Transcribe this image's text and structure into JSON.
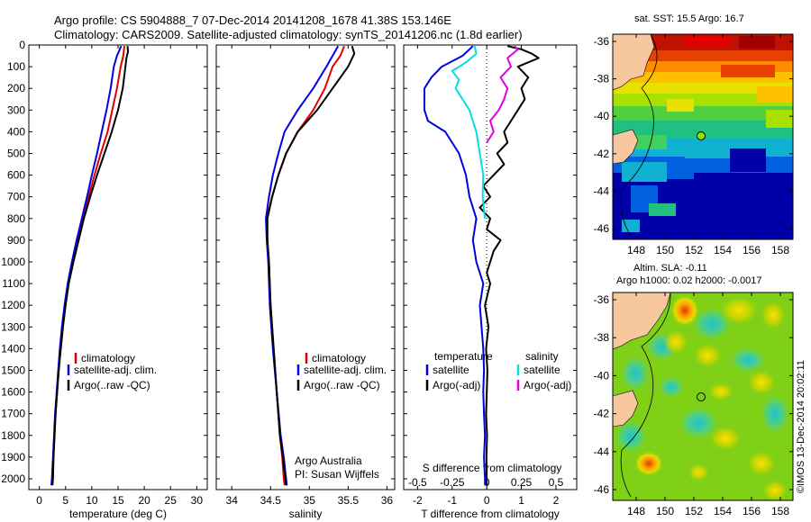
{
  "titles": {
    "line1": "Argo profile: CS 5904888_7 07-Dec-2014 20141208_1678 41.38S 153.146E",
    "line2": "Climatology: CARS2009. Satellite-adjusted climatology: synTS_20141206.nc (1.8d earlier)"
  },
  "colors": {
    "climatology": "#e00000",
    "satellite": "#0000e0",
    "argo": "#000000",
    "sal_satellite": "#00e0e0",
    "sal_argo": "#e000e0",
    "land": "#f7c8a0"
  },
  "legend_temp": {
    "climatology": "climatology",
    "satellite": "satellite-adj. clim.",
    "argo": "Argo(..raw -QC)"
  },
  "legend_sal": {
    "climatology": "climatology",
    "satellite": "satellite-adj. clim.",
    "argo": "Argo(..raw -QC)"
  },
  "legend_diff": {
    "temperature_head": "temperature",
    "salinity_head": "salinity",
    "satellite_t": "satellite",
    "argo_t": "Argo(-adj)",
    "satellite_s": "satellite",
    "argo_s": "Argo(-adj)"
  },
  "credit": {
    "line1": "Argo Australia",
    "line2": "PI: Susan Wijffels"
  },
  "map_sst": {
    "title": "sat. SST: 15.5 Argo: 16.7",
    "yticks": [
      "-36",
      "-38",
      "-40",
      "-42",
      "-44",
      "-46"
    ],
    "xticks": [
      "148",
      "150",
      "152",
      "154",
      "156",
      "158"
    ]
  },
  "map_sla": {
    "title1": "Altim. SLA: -0.11",
    "title2": "Argo h1000: 0.02 h2000: -0.0017",
    "yticks": [
      "-36",
      "-38",
      "-40",
      "-42",
      "-44",
      "-46"
    ],
    "xticks": [
      "148",
      "150",
      "152",
      "154",
      "156",
      "158"
    ]
  },
  "watermark": "©IMOS 13-Dec-2014 20:02:11",
  "chart_data": [
    {
      "type": "line",
      "name": "temperature-profile",
      "xlabel": "temperature (deg C)",
      "ylabel": "",
      "xlim": [
        -2,
        32
      ],
      "ylim": [
        2050,
        0
      ],
      "xticks": [
        0,
        5,
        10,
        15,
        20,
        25,
        30
      ],
      "yticks": [
        0,
        100,
        200,
        300,
        400,
        500,
        600,
        700,
        800,
        900,
        1000,
        1100,
        1200,
        1300,
        1400,
        1500,
        1600,
        1700,
        1800,
        1900,
        2000
      ],
      "series": [
        {
          "name": "climatology",
          "color": "#e00000",
          "points": [
            [
              16.2,
              5
            ],
            [
              16.0,
              50
            ],
            [
              15.5,
              100
            ],
            [
              14.8,
              200
            ],
            [
              13.9,
              300
            ],
            [
              13.0,
              400
            ],
            [
              11.7,
              500
            ],
            [
              10.5,
              600
            ],
            [
              9.4,
              700
            ],
            [
              8.3,
              800
            ],
            [
              7.3,
              900
            ],
            [
              6.3,
              1000
            ],
            [
              5.5,
              1100
            ],
            [
              4.9,
              1200
            ],
            [
              4.4,
              1300
            ],
            [
              4.0,
              1400
            ],
            [
              3.7,
              1500
            ],
            [
              3.4,
              1600
            ],
            [
              3.1,
              1700
            ],
            [
              2.9,
              1800
            ],
            [
              2.7,
              1900
            ],
            [
              2.5,
              2000
            ],
            [
              2.4,
              2030
            ]
          ]
        },
        {
          "name": "satellite-adj. clim.",
          "color": "#0000e0",
          "points": [
            [
              15.6,
              5
            ],
            [
              14.8,
              50
            ],
            [
              14.2,
              100
            ],
            [
              13.6,
              200
            ],
            [
              12.8,
              300
            ],
            [
              11.9,
              400
            ],
            [
              11.0,
              500
            ],
            [
              10.0,
              600
            ],
            [
              9.1,
              700
            ],
            [
              8.1,
              800
            ],
            [
              7.1,
              900
            ],
            [
              6.2,
              1000
            ],
            [
              5.4,
              1100
            ],
            [
              4.8,
              1200
            ],
            [
              4.3,
              1300
            ],
            [
              3.9,
              1400
            ],
            [
              3.6,
              1500
            ],
            [
              3.3,
              1600
            ],
            [
              3.0,
              1700
            ],
            [
              2.8,
              1800
            ],
            [
              2.6,
              1900
            ],
            [
              2.4,
              2000
            ],
            [
              2.3,
              2030
            ]
          ]
        },
        {
          "name": "Argo(..raw -QC)",
          "color": "#000000",
          "points": [
            [
              16.8,
              5
            ],
            [
              16.9,
              30
            ],
            [
              16.6,
              60
            ],
            [
              16.4,
              100
            ],
            [
              15.9,
              200
            ],
            [
              15.0,
              300
            ],
            [
              13.8,
              400
            ],
            [
              12.4,
              500
            ],
            [
              11.0,
              600
            ],
            [
              9.7,
              700
            ],
            [
              8.5,
              800
            ],
            [
              7.5,
              900
            ],
            [
              6.5,
              1000
            ],
            [
              5.6,
              1100
            ],
            [
              5.0,
              1200
            ],
            [
              4.5,
              1300
            ],
            [
              4.1,
              1400
            ],
            [
              3.7,
              1500
            ],
            [
              3.4,
              1600
            ],
            [
              3.1,
              1700
            ],
            [
              2.9,
              1800
            ],
            [
              2.7,
              1900
            ],
            [
              2.6,
              2000
            ],
            [
              2.5,
              2030
            ]
          ]
        }
      ]
    },
    {
      "type": "line",
      "name": "salinity-profile",
      "xlabel": "salinity",
      "ylabel": "",
      "xlim": [
        33.8,
        36.1
      ],
      "ylim": [
        2050,
        0
      ],
      "xticks": [
        34,
        34.5,
        35,
        35.5,
        36
      ],
      "series": [
        {
          "name": "climatology",
          "color": "#e00000",
          "points": [
            [
              35.45,
              5
            ],
            [
              35.4,
              50
            ],
            [
              35.3,
              100
            ],
            [
              35.2,
              200
            ],
            [
              35.05,
              300
            ],
            [
              34.85,
              400
            ],
            [
              34.7,
              500
            ],
            [
              34.6,
              600
            ],
            [
              34.52,
              700
            ],
            [
              34.45,
              800
            ],
            [
              34.46,
              900
            ],
            [
              34.48,
              1000
            ],
            [
              34.5,
              1200
            ],
            [
              34.54,
              1400
            ],
            [
              34.58,
              1600
            ],
            [
              34.62,
              1800
            ],
            [
              34.65,
              1900
            ],
            [
              34.67,
              2000
            ],
            [
              34.68,
              2030
            ]
          ]
        },
        {
          "name": "satellite-adj. clim.",
          "color": "#0000e0",
          "points": [
            [
              35.37,
              5
            ],
            [
              35.3,
              50
            ],
            [
              35.22,
              100
            ],
            [
              35.05,
              200
            ],
            [
              34.85,
              300
            ],
            [
              34.68,
              400
            ],
            [
              34.6,
              500
            ],
            [
              34.53,
              600
            ],
            [
              34.48,
              700
            ],
            [
              34.44,
              800
            ],
            [
              34.45,
              900
            ],
            [
              34.47,
              1000
            ],
            [
              34.49,
              1200
            ],
            [
              34.53,
              1400
            ],
            [
              34.58,
              1600
            ],
            [
              34.63,
              1800
            ],
            [
              34.67,
              1900
            ],
            [
              34.7,
              2000
            ],
            [
              34.71,
              2030
            ]
          ]
        },
        {
          "name": "Argo(..raw -QC)",
          "color": "#000000",
          "points": [
            [
              35.55,
              5
            ],
            [
              35.58,
              40
            ],
            [
              35.5,
              100
            ],
            [
              35.3,
              200
            ],
            [
              35.1,
              300
            ],
            [
              34.85,
              400
            ],
            [
              34.7,
              500
            ],
            [
              34.6,
              600
            ],
            [
              34.52,
              700
            ],
            [
              34.46,
              800
            ],
            [
              34.46,
              900
            ],
            [
              34.48,
              1000
            ],
            [
              34.5,
              1200
            ],
            [
              34.54,
              1400
            ],
            [
              34.58,
              1600
            ],
            [
              34.62,
              1800
            ],
            [
              34.66,
              1900
            ],
            [
              34.69,
              2000
            ],
            [
              34.7,
              2030
            ]
          ]
        }
      ]
    },
    {
      "type": "line",
      "name": "difference-profile",
      "xlabel": "T difference from climatology",
      "xlabel2": "S difference from climatology",
      "xlim": [
        -2.4,
        2.6
      ],
      "ylim": [
        2050,
        0
      ],
      "xticks": [
        -2,
        -1,
        0,
        1,
        2
      ],
      "xticks_s": [
        "-0.5",
        "-0.25",
        "0",
        "0.25",
        "0.5"
      ],
      "xticks_s_pos": [
        -2,
        -1,
        0,
        1,
        2
      ],
      "series": [
        {
          "name": "temperature satellite",
          "color": "#0000e0",
          "points": [
            [
              -0.4,
              5
            ],
            [
              -0.5,
              20
            ],
            [
              -0.7,
              50
            ],
            [
              -1.3,
              100
            ],
            [
              -1.6,
              150
            ],
            [
              -1.8,
              200
            ],
            [
              -1.8,
              300
            ],
            [
              -1.7,
              350
            ],
            [
              -1.2,
              400
            ],
            [
              -0.8,
              500
            ],
            [
              -0.6,
              600
            ],
            [
              -0.5,
              700
            ],
            [
              -0.3,
              800
            ],
            [
              -0.4,
              900
            ],
            [
              -0.3,
              1000
            ],
            [
              -0.1,
              1100
            ],
            [
              -0.2,
              1200
            ],
            [
              -0.15,
              1300
            ],
            [
              -0.1,
              1400
            ],
            [
              -0.08,
              1500
            ],
            [
              -0.1,
              1600
            ],
            [
              -0.08,
              1700
            ],
            [
              -0.05,
              1800
            ],
            [
              -0.08,
              1900
            ],
            [
              -0.05,
              2000
            ],
            [
              -0.05,
              2030
            ]
          ]
        },
        {
          "name": "temperature Argo(-adj)",
          "color": "#000000",
          "points": [
            [
              0.6,
              5
            ],
            [
              1.0,
              20
            ],
            [
              1.3,
              40
            ],
            [
              1.5,
              60
            ],
            [
              1.2,
              80
            ],
            [
              0.9,
              100
            ],
            [
              1.2,
              150
            ],
            [
              1.0,
              200
            ],
            [
              1.1,
              250
            ],
            [
              0.9,
              300
            ],
            [
              0.5,
              400
            ],
            [
              0.6,
              450
            ],
            [
              0.3,
              500
            ],
            [
              0.5,
              550
            ],
            [
              0.2,
              600
            ],
            [
              -0.1,
              650
            ],
            [
              0.1,
              700
            ],
            [
              -0.2,
              750
            ],
            [
              0.1,
              800
            ],
            [
              0.0,
              850
            ],
            [
              0.4,
              900
            ],
            [
              0.2,
              950
            ],
            [
              0.1,
              1000
            ],
            [
              0.0,
              1050
            ],
            [
              0.1,
              1100
            ],
            [
              -0.05,
              1200
            ],
            [
              0.05,
              1300
            ],
            [
              -0.02,
              1400
            ],
            [
              0.02,
              1500
            ],
            [
              0.0,
              1600
            ],
            [
              -0.02,
              1700
            ],
            [
              0.01,
              1800
            ],
            [
              -0.01,
              1900
            ],
            [
              0.0,
              2030
            ]
          ]
        },
        {
          "name": "salinity satellite",
          "color": "#00e0e0",
          "points": [
            [
              -0.35,
              5
            ],
            [
              -0.3,
              40
            ],
            [
              -0.6,
              80
            ],
            [
              -1.0,
              120
            ],
            [
              -0.8,
              160
            ],
            [
              -0.9,
              200
            ],
            [
              -0.5,
              300
            ],
            [
              -0.3,
              400
            ],
            [
              -0.2,
              500
            ],
            [
              -0.1,
              600
            ],
            [
              -0.12,
              700
            ],
            [
              -0.05,
              800
            ]
          ]
        },
        {
          "name": "salinity Argo(-adj)",
          "color": "#e000e0",
          "points": [
            [
              0.8,
              5
            ],
            [
              0.9,
              20
            ],
            [
              0.6,
              60
            ],
            [
              0.7,
              100
            ],
            [
              0.4,
              150
            ],
            [
              0.6,
              200
            ],
            [
              0.5,
              250
            ],
            [
              0.35,
              300
            ],
            [
              0.1,
              350
            ],
            [
              0.2,
              400
            ],
            [
              0.0,
              450
            ]
          ]
        }
      ]
    }
  ]
}
